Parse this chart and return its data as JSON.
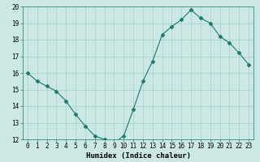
{
  "x": [
    0,
    1,
    2,
    3,
    4,
    5,
    6,
    7,
    8,
    9,
    10,
    11,
    12,
    13,
    14,
    15,
    16,
    17,
    18,
    19,
    20,
    21,
    22,
    23
  ],
  "y": [
    16.0,
    15.5,
    15.2,
    14.9,
    14.3,
    13.5,
    12.8,
    12.2,
    12.0,
    11.8,
    12.2,
    13.8,
    15.5,
    16.7,
    18.3,
    18.8,
    19.2,
    19.8,
    19.3,
    19.0,
    18.2,
    17.8,
    17.2,
    16.5
  ],
  "line_color": "#1a7a6e",
  "marker": "D",
  "marker_size": 2.5,
  "bg_color": "#cce8e4",
  "grid_color": "#a8d0cc",
  "xlabel": "Humidex (Indice chaleur)",
  "ylim": [
    12,
    20
  ],
  "xlim": [
    -0.5,
    23.5
  ],
  "yticks": [
    12,
    13,
    14,
    15,
    16,
    17,
    18,
    19,
    20
  ],
  "xticks": [
    0,
    1,
    2,
    3,
    4,
    5,
    6,
    7,
    8,
    9,
    10,
    11,
    12,
    13,
    14,
    15,
    16,
    17,
    18,
    19,
    20,
    21,
    22,
    23
  ],
  "label_fontsize": 6.5,
  "tick_fontsize": 5.5
}
